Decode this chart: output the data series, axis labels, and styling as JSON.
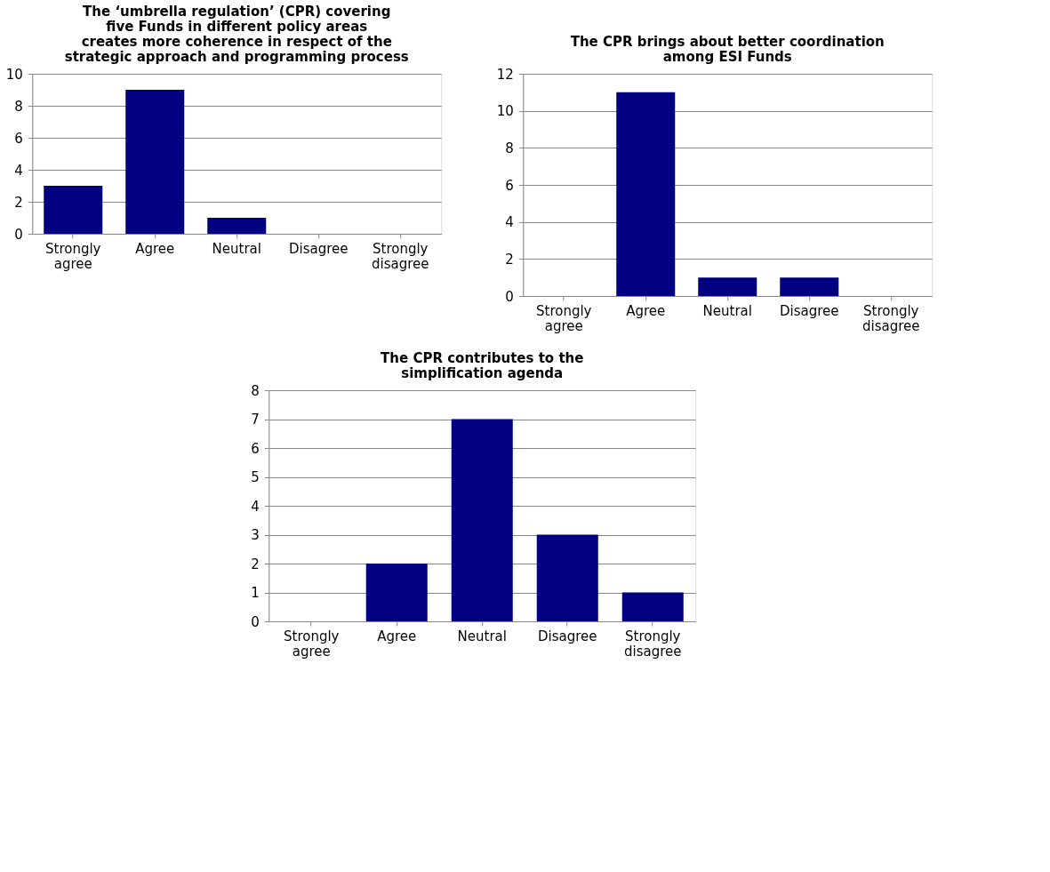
{
  "chart_data": [
    {
      "type": "bar",
      "title": "The ‘umbrella regulation’ (CPR) covering five Funds in different policy areas creates more coherence in respect of the strategic approach and programming process",
      "categories": [
        "Strongly agree",
        "Agree",
        "Neutral",
        "Disagree",
        "Strongly disagree"
      ],
      "values": [
        3,
        9,
        1,
        0,
        0
      ],
      "color": "#000080",
      "ylim": [
        0,
        10
      ],
      "yticks": [
        0,
        2,
        4,
        6,
        8,
        10
      ],
      "grid": "y"
    },
    {
      "type": "bar",
      "title": "The CPR brings about better coordination among ESI Funds",
      "categories": [
        "Strongly agree",
        "Agree",
        "Neutral",
        "Disagree",
        "Strongly disagree"
      ],
      "values": [
        0,
        11,
        1,
        1,
        0
      ],
      "color": "#000080",
      "ylim": [
        0,
        12
      ],
      "yticks": [
        0,
        2,
        4,
        6,
        8,
        10,
        12
      ],
      "grid": "y"
    },
    {
      "type": "bar",
      "title": "The CPR contributes to the simplification agenda",
      "categories": [
        "Strongly agree",
        "Agree",
        "Neutral",
        "Disagree",
        "Strongly disagree"
      ],
      "values": [
        0,
        2,
        7,
        3,
        1
      ],
      "color": "#000080",
      "ylim": [
        0,
        8
      ],
      "yticks": [
        0,
        1,
        2,
        3,
        4,
        5,
        6,
        7,
        8
      ],
      "grid": "y"
    }
  ]
}
